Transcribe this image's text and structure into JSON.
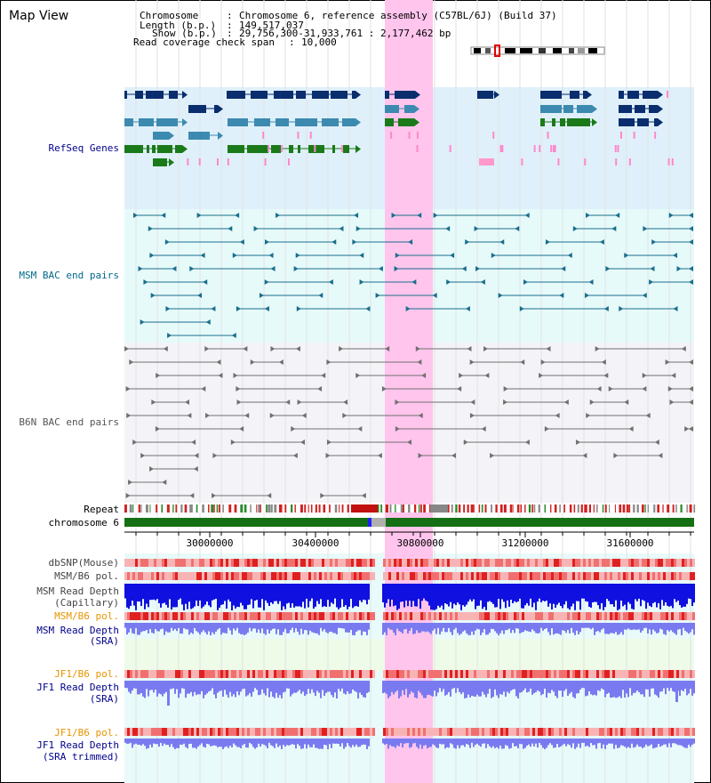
{
  "header": {
    "title": "Map View",
    "chromosome_key": "Chromosome",
    "chromosome_val": "Chromosome 6, reference assembly (C57BL/6J) (Build 37)",
    "length_key": "Length (b.p.)",
    "length_val": "149,517,037",
    "show_key": "Show (b.p.)",
    "show_val": "29,756,300-31,933,761 : 2,177,462 bp",
    "coverage_key": "Read coverage check span",
    "coverage_val": "10,000"
  },
  "tracks": {
    "refseq": "RefSeq Genes",
    "msm_bac": "MSM BAC end pairs",
    "b6n_bac": "B6N BAC end pairs",
    "repeat": "Repeat",
    "chromosome": "chromosome 6",
    "dbsnp": "dbSNP(Mouse)",
    "msm_pol1": "MSM/B6 pol.",
    "msm_depth_cap_1": "MSM Read Depth",
    "msm_depth_cap_2": "(Capillary)",
    "msm_pol2": "MSM/B6 pol.",
    "msm_depth_sra_1": "MSM Read Depth",
    "msm_depth_sra_2": "(SRA)",
    "jf1_pol1": "JF1/B6 pol.",
    "jf1_depth_sra_1": "JF1 Read Depth",
    "jf1_depth_sra_2": "(SRA)",
    "jf1_pol2": "JF1/B6 pol.",
    "jf1_depth_trim_1": "JF1 Read Depth",
    "jf1_depth_trim_2": "(SRA trimmed)"
  },
  "axis": {
    "ticks": [
      "30000000",
      "30400000",
      "30800000",
      "31200000",
      "31600000"
    ]
  },
  "colors": {
    "highlight": "#ffd0f0",
    "gene_dark": "#0a2d6e",
    "gene_teal": "#3c8ab0",
    "gene_green": "#1a7a1a",
    "bac_teal": "#1a6e8c",
    "bac_gray": "#707070",
    "chrom_green": "#157015",
    "depth_blue": "#1010e0",
    "depth_light": "#7a7af0",
    "orange": "#e69500",
    "navy": "#00008b"
  }
}
